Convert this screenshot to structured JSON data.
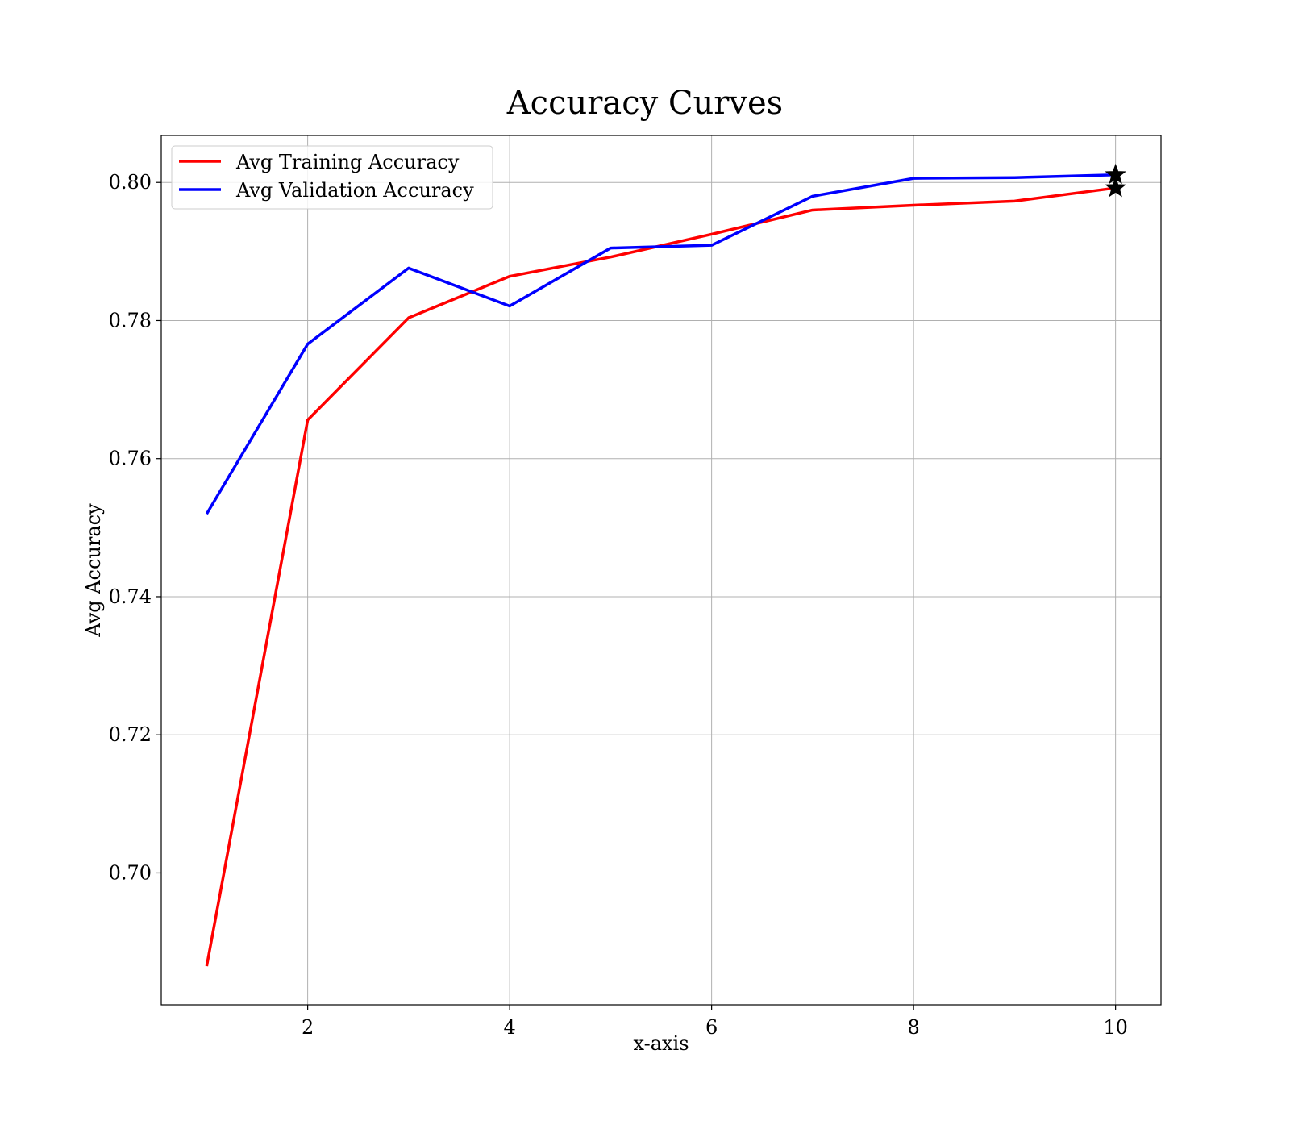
{
  "chart_data": {
    "type": "line",
    "title": "Accuracy Curves",
    "xlabel": "x-axis",
    "ylabel": "Avg Accuracy",
    "x": [
      1,
      2,
      3,
      4,
      5,
      6,
      7,
      8,
      9,
      10
    ],
    "series": [
      {
        "name": "Avg Training Accuracy",
        "color": "#ff0000",
        "values": [
          0.6865,
          0.7656,
          0.7804,
          0.7864,
          0.7892,
          0.7925,
          0.796,
          0.7967,
          0.7973,
          0.7992
        ]
      },
      {
        "name": "Avg Validation Accuracy",
        "color": "#0000ff",
        "values": [
          0.752,
          0.7766,
          0.7876,
          0.7821,
          0.7905,
          0.7909,
          0.798,
          0.8006,
          0.8007,
          0.8011
        ]
      }
    ],
    "markers": [
      {
        "series": "Avg Training Accuracy",
        "x": 10,
        "y": 0.7992,
        "symbol": "star",
        "color": "#000000"
      },
      {
        "series": "Avg Validation Accuracy",
        "x": 10,
        "y": 0.8011,
        "symbol": "star",
        "color": "#000000"
      }
    ],
    "xlim": [
      0.55,
      10.45
    ],
    "ylim": [
      0.6809,
      0.8068
    ],
    "xticks": [
      2,
      4,
      6,
      8,
      10
    ],
    "xtick_labels": [
      "2",
      "4",
      "6",
      "8",
      "10"
    ],
    "yticks": [
      0.7,
      0.72,
      0.74,
      0.76,
      0.78,
      0.8
    ],
    "ytick_labels": [
      "0.70",
      "0.72",
      "0.74",
      "0.76",
      "0.78",
      "0.80"
    ],
    "grid": true,
    "legend_position": "upper-left"
  }
}
